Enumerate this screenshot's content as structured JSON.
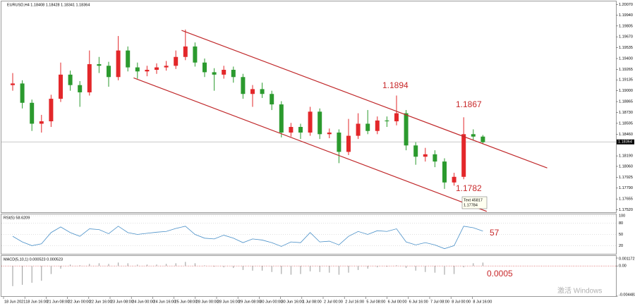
{
  "chart_data": {
    "type": "candlestick",
    "header": "EURUSD,H4  1.18408 1.18428 1.18341 1.18364",
    "open": [
      1.1907,
      1.1909,
      1.1885,
      1.1859,
      1.1862,
      1.189,
      1.192,
      1.1907,
      1.1898,
      1.1933,
      1.1931,
      1.1917,
      1.195,
      1.1929,
      1.1924,
      1.1926,
      1.1929,
      1.1931,
      1.1942,
      1.1955,
      1.1935,
      1.1923,
      1.192,
      1.1926,
      1.1917,
      1.1896,
      1.1902,
      1.1896,
      1.1883,
      1.1848,
      1.1855,
      1.1848,
      1.1874,
      1.1846,
      1.1848,
      1.1824,
      1.1844,
      1.1859,
      1.185,
      1.1863,
      1.1862,
      1.1872,
      1.1832,
      1.1818,
      1.1821,
      1.1812,
      1.1786,
      1.1793,
      1.1846,
      1.1843
    ],
    "high": [
      1.1922,
      1.1913,
      1.1889,
      1.187,
      1.1895,
      1.1935,
      1.1925,
      1.1912,
      1.195,
      1.1942,
      1.1936,
      1.1968,
      1.1955,
      1.1935,
      1.1931,
      1.1934,
      1.1937,
      1.195,
      1.1976,
      1.196,
      1.194,
      1.1928,
      1.1931,
      1.193,
      1.1921,
      1.1907,
      1.191,
      1.19,
      1.1887,
      1.186,
      1.1859,
      1.188,
      1.1878,
      1.1853,
      1.1852,
      1.1865,
      1.1872,
      1.1876,
      1.1868,
      1.1868,
      1.1894,
      1.1876,
      1.1836,
      1.1829,
      1.1826,
      1.1816,
      1.1798,
      1.1867,
      1.1852,
      1.1845
    ],
    "low": [
      1.19,
      1.1878,
      1.185,
      1.1848,
      1.1855,
      1.1886,
      1.19,
      1.188,
      1.1894,
      1.1922,
      1.1905,
      1.1913,
      1.1924,
      1.1915,
      1.1918,
      1.1921,
      1.1925,
      1.1927,
      1.1938,
      1.193,
      1.1917,
      1.19,
      1.1915,
      1.191,
      1.189,
      1.188,
      1.1891,
      1.1876,
      1.1842,
      1.1843,
      1.184,
      1.1844,
      1.184,
      1.1841,
      1.181,
      1.182,
      1.184,
      1.1846,
      1.1846,
      1.1855,
      1.1857,
      1.1826,
      1.1808,
      1.1812,
      1.1805,
      1.1778,
      1.1782,
      1.179,
      1.1838,
      1.1834
    ],
    "close": [
      1.1909,
      1.1885,
      1.1859,
      1.1862,
      1.189,
      1.192,
      1.1907,
      1.1898,
      1.1933,
      1.1931,
      1.1917,
      1.195,
      1.1929,
      1.1924,
      1.1926,
      1.1929,
      1.1931,
      1.1942,
      1.1955,
      1.1935,
      1.1923,
      1.192,
      1.1926,
      1.1917,
      1.1896,
      1.1902,
      1.1896,
      1.1883,
      1.1848,
      1.1855,
      1.1848,
      1.1874,
      1.1846,
      1.1848,
      1.1824,
      1.1844,
      1.1859,
      1.185,
      1.1863,
      1.1862,
      1.1872,
      1.1832,
      1.1818,
      1.1821,
      1.1812,
      1.1786,
      1.1793,
      1.1846,
      1.1843,
      1.1836
    ],
    "up_color": "#e3272a",
    "down_color": "#2b9a2e",
    "ylim": [
      1.1749,
      1.2011
    ],
    "yticks": [
      {
        "value": 1.2007,
        "label": "1.20070"
      },
      {
        "value": 1.1994,
        "label": "1.19940"
      },
      {
        "value": 1.19805,
        "label": "1.19805"
      },
      {
        "value": 1.1967,
        "label": "1.19670"
      },
      {
        "value": 1.19535,
        "label": "1.19535"
      },
      {
        "value": 1.194,
        "label": "1.19400"
      },
      {
        "value": 1.19265,
        "label": "1.19265"
      },
      {
        "value": 1.19135,
        "label": "1.19135"
      },
      {
        "value": 1.19,
        "label": "1.19000"
      },
      {
        "value": 1.18865,
        "label": "1.18865"
      },
      {
        "value": 1.1873,
        "label": "1.18730"
      },
      {
        "value": 1.18595,
        "label": "1.18595"
      },
      {
        "value": 1.1846,
        "label": "1.18460"
      },
      {
        "value": 1.1819,
        "label": "1.18190"
      },
      {
        "value": 1.1806,
        "label": "1.18060"
      },
      {
        "value": 1.17925,
        "label": "1.17925"
      },
      {
        "value": 1.1779,
        "label": "1.17790"
      },
      {
        "value": 1.17655,
        "label": "1.17655"
      },
      {
        "value": 1.1752,
        "label": "1.17520"
      }
    ],
    "current_price": 1.18364,
    "x_labels": [
      "18 Jun 2021",
      "18 Jun 16:00",
      "21 Jun 08:00",
      "22 Jun 00:00",
      "22 Jun 16:00",
      "23 Jun 08:00",
      "24 Jun 00:00",
      "24 Jun 16:00",
      "25 Jun 08:00",
      "28 Jun 00:00",
      "28 Jun 16:00",
      "29 Jun 08:00",
      "30 Jun 00:00",
      "30 Jun 16:00",
      "1 Jul 08:00",
      "2 Jul 00:00",
      "2 Jul 16:00",
      "5 Jul 08:00",
      "6 Jul 00:00",
      "6 Jul 16:00",
      "7 Jul 08:00",
      "8 Jul 00:00",
      "8 Jul 16:00"
    ],
    "trendlines": [
      {
        "start": [
          17.6,
          1.1975
        ],
        "end": [
          55.7,
          1.1804
        ]
      },
      {
        "start": [
          12.6,
          1.1916
        ],
        "end": [
          49.4,
          1.175
        ]
      }
    ],
    "trend_color": "#c0282a",
    "annotations": [
      {
        "text": "1.1894"
      },
      {
        "text": "1.1867"
      },
      {
        "text": "1.1782"
      }
    ],
    "tooltip": [
      "Text 45817",
      "1.17784"
    ],
    "rsi": {
      "label": "RSI(5) 58.6209",
      "color": "#4a90c8",
      "values": [
        45,
        30,
        20,
        25,
        55,
        70,
        55,
        45,
        65,
        63,
        52,
        72,
        55,
        50,
        53,
        56,
        58,
        66,
        72,
        50,
        40,
        38,
        48,
        40,
        28,
        38,
        35,
        28,
        18,
        30,
        28,
        55,
        30,
        32,
        22,
        45,
        58,
        50,
        60,
        58,
        65,
        30,
        22,
        28,
        22,
        12,
        20,
        72,
        68,
        59
      ],
      "ylim": [
        0,
        100
      ],
      "yticks": [
        100,
        80,
        50,
        20
      ],
      "annotation": "57"
    },
    "macd": {
      "label": "MACD(5,10,1) 0.000523 0.000523",
      "color": "#9a9a9a",
      "signal_color": "#d03030",
      "values": [
        -0.003,
        -0.0028,
        -0.0025,
        -0.0022,
        -0.0012,
        -0.0004,
        0.0002,
        0.0001,
        0.0003,
        0.0004,
        0.0003,
        0.0005,
        0.0004,
        0.0002,
        0.0002,
        0.0002,
        0.0003,
        0.0004,
        0.0006,
        0.0004,
        0.0001,
        -0.0001,
        -0.0002,
        -0.0003,
        -0.0006,
        -0.0007,
        -0.0007,
        -0.0009,
        -0.0012,
        -0.0013,
        -0.0012,
        -0.0008,
        -0.0009,
        -0.001,
        -0.0013,
        -0.001,
        -0.0006,
        -0.0004,
        -0.0002,
        -0.0001,
        0.0001,
        -0.0003,
        -0.0007,
        -0.0009,
        -0.001,
        -0.0013,
        -0.0012,
        -0.0002,
        0.0004,
        0.0005
      ],
      "ylim": [
        -0.004483,
        0.001172
      ],
      "yticks": [
        0.001172,
        {
          "value": 0,
          "label": "0.00"
        },
        -0.004483
      ],
      "annotation": "0.0005"
    },
    "watermark": "激活 Windows"
  }
}
